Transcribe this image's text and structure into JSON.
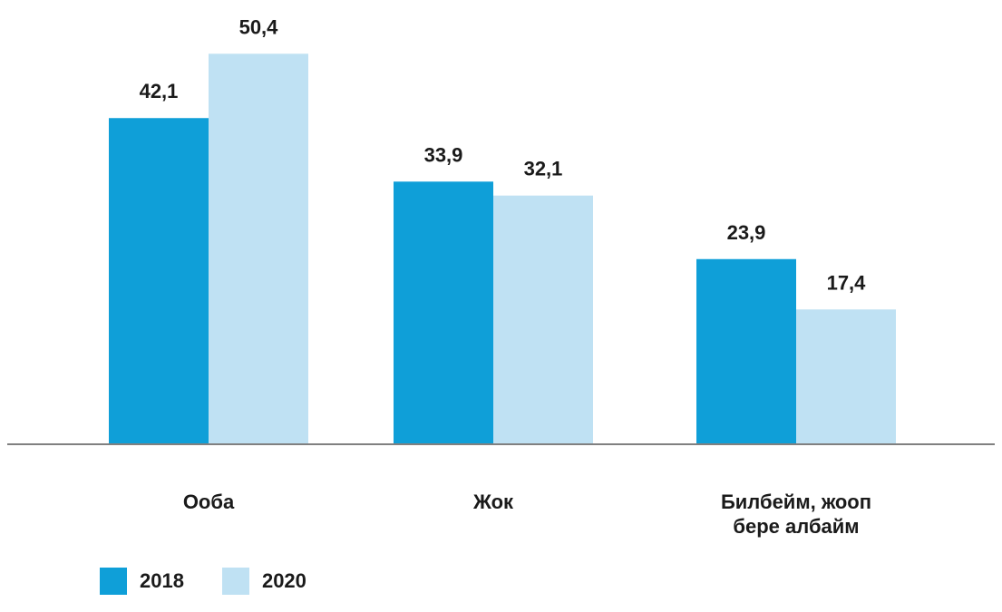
{
  "chart_data": {
    "type": "bar",
    "categories": [
      [
        "Ооба"
      ],
      [
        "Жок"
      ],
      [
        "Билбейм, жооп",
        "бере албайм"
      ]
    ],
    "series": [
      {
        "name": "2018",
        "values": [
          42.1,
          33.9,
          23.9
        ],
        "labels": [
          "42,1",
          "33,9",
          "23,9"
        ],
        "color": "#0f9fd8"
      },
      {
        "name": "2020",
        "values": [
          50.4,
          32.1,
          17.4
        ],
        "labels": [
          "50,4",
          "32,1",
          "17,4"
        ],
        "color": "#bfe1f3"
      }
    ],
    "ylim": [
      0,
      55
    ],
    "axis_color": "#808080",
    "grid": false,
    "legend_position": "bottom-left"
  }
}
